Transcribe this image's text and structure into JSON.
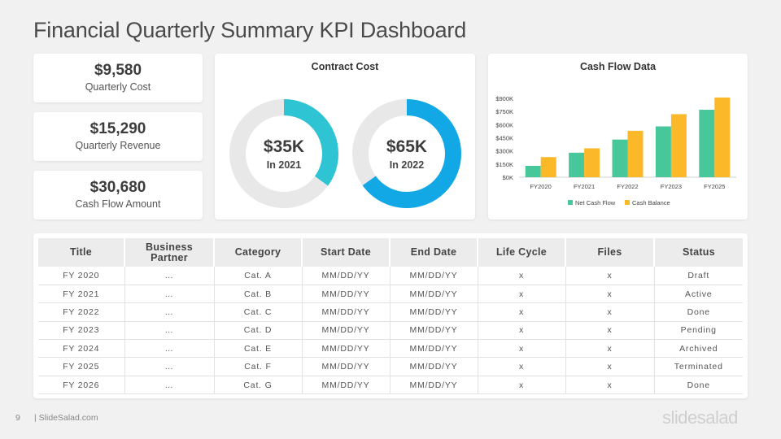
{
  "page": {
    "title": "Financial Quarterly Summary KPI Dashboard"
  },
  "kpis": [
    {
      "value": "$9,580",
      "label": "Quarterly Cost"
    },
    {
      "value": "$15,290",
      "label": "Quarterly Revenue"
    },
    {
      "value": "$30,680",
      "label": "Cash Flow Amount"
    }
  ],
  "contract_cost": {
    "title": "Contract Cost",
    "donuts": [
      {
        "value": "$35K",
        "label": "In 2021",
        "fraction": 0.35,
        "color": "#2ec4d4"
      },
      {
        "value": "$65K",
        "label": "In 2022",
        "fraction": 0.65,
        "color": "#12a8e6"
      }
    ],
    "track_color": "#e8e8e8"
  },
  "colors": {
    "net_cash_flow": "#48c89a",
    "cash_balance": "#fbb92a",
    "card_bg": "#ffffff",
    "page_bg": "#f1f1f2"
  },
  "chart_data": {
    "type": "bar",
    "title": "Cash Flow Data",
    "categories": [
      "FY2020",
      "FY2021",
      "FY2022",
      "FY2023",
      "FY2025"
    ],
    "series": [
      {
        "name": "Net Cash Flow",
        "values": [
          130000,
          280000,
          430000,
          580000,
          770000
        ]
      },
      {
        "name": "Cash Balance",
        "values": [
          230000,
          330000,
          530000,
          720000,
          910000
        ]
      }
    ],
    "yticks": [
      "$0K",
      "$150K",
      "$300K",
      "$450K",
      "$600K",
      "$750K",
      "$900K"
    ],
    "ylim": [
      0,
      900000
    ],
    "legend": "bottom",
    "grid": false
  },
  "table": {
    "headers": [
      "Title",
      "Business Partner",
      "Category",
      "Start Date",
      "End Date",
      "Life Cycle",
      "Files",
      "Status"
    ],
    "rows": [
      [
        "FY 2020",
        "…",
        "Cat. A",
        "MM/DD/YY",
        "MM/DD/YY",
        "x",
        "x",
        "Draft"
      ],
      [
        "FY 2021",
        "…",
        "Cat. B",
        "MM/DD/YY",
        "MM/DD/YY",
        "x",
        "x",
        "Active"
      ],
      [
        "FY 2022",
        "…",
        "Cat. C",
        "MM/DD/YY",
        "MM/DD/YY",
        "x",
        "x",
        "Done"
      ],
      [
        "FY 2023",
        "…",
        "Cat. D",
        "MM/DD/YY",
        "MM/DD/YY",
        "x",
        "x",
        "Pending"
      ],
      [
        "FY 2024",
        "…",
        "Cat. E",
        "MM/DD/YY",
        "MM/DD/YY",
        "x",
        "x",
        "Archived"
      ],
      [
        "FY 2025",
        "…",
        "Cat. F",
        "MM/DD/YY",
        "MM/DD/YY",
        "x",
        "x",
        "Terminated"
      ],
      [
        "FY 2026",
        "…",
        "Cat. G",
        "MM/DD/YY",
        "MM/DD/YY",
        "x",
        "x",
        "Done"
      ]
    ]
  },
  "footer": {
    "page_number": "9",
    "site": "| SlideSalad.com",
    "brand": "slidesalad"
  }
}
